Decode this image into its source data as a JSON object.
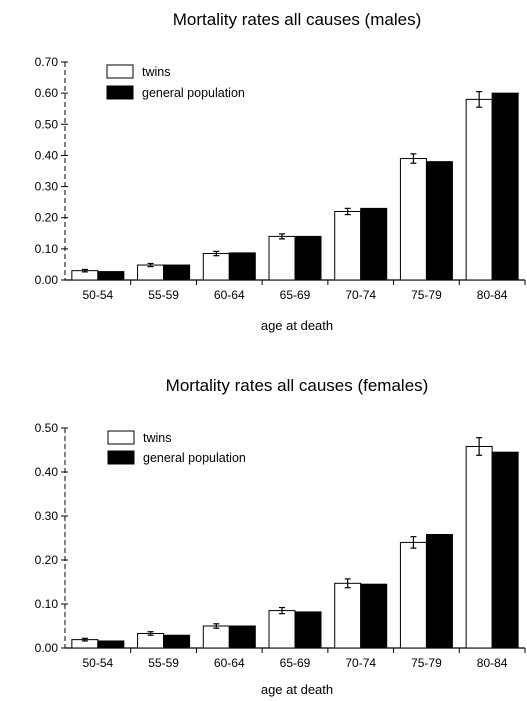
{
  "chart_data": [
    {
      "type": "bar",
      "title": "Mortality rates all causes (males)",
      "xlabel": "age at death",
      "ylabel": "",
      "ylim": [
        0,
        0.7
      ],
      "yticks": [
        "0.00",
        "0.10",
        "0.20",
        "0.30",
        "0.40",
        "0.50",
        "0.60",
        "0.70"
      ],
      "categories": [
        "50-54",
        "55-59",
        "60-64",
        "65-69",
        "70-74",
        "75-79",
        "80-84"
      ],
      "legend_position": "top-left",
      "series": [
        {
          "name": "twins",
          "color": "#ffffff",
          "values": [
            0.03,
            0.048,
            0.085,
            0.14,
            0.22,
            0.39,
            0.58
          ],
          "errors": [
            0.004,
            0.005,
            0.007,
            0.008,
            0.01,
            0.015,
            0.025
          ]
        },
        {
          "name": "general population",
          "color": "#000000",
          "values": [
            0.027,
            0.048,
            0.087,
            0.14,
            0.23,
            0.38,
            0.6
          ]
        }
      ]
    },
    {
      "type": "bar",
      "title": "Mortality rates all causes (females)",
      "xlabel": "age at death",
      "ylabel": "",
      "ylim": [
        0,
        0.5
      ],
      "yticks": [
        "0.00",
        "0.10",
        "0.20",
        "0.30",
        "0.40",
        "0.50"
      ],
      "categories": [
        "50-54",
        "55-59",
        "60-64",
        "65-69",
        "70-74",
        "75-79",
        "80-84"
      ],
      "legend_position": "top-left",
      "series": [
        {
          "name": "twins",
          "color": "#ffffff",
          "values": [
            0.019,
            0.033,
            0.05,
            0.085,
            0.147,
            0.24,
            0.458
          ],
          "errors": [
            0.003,
            0.004,
            0.005,
            0.007,
            0.01,
            0.013,
            0.02
          ]
        },
        {
          "name": "general population",
          "color": "#000000",
          "values": [
            0.016,
            0.029,
            0.05,
            0.082,
            0.145,
            0.258,
            0.445
          ]
        }
      ]
    }
  ]
}
